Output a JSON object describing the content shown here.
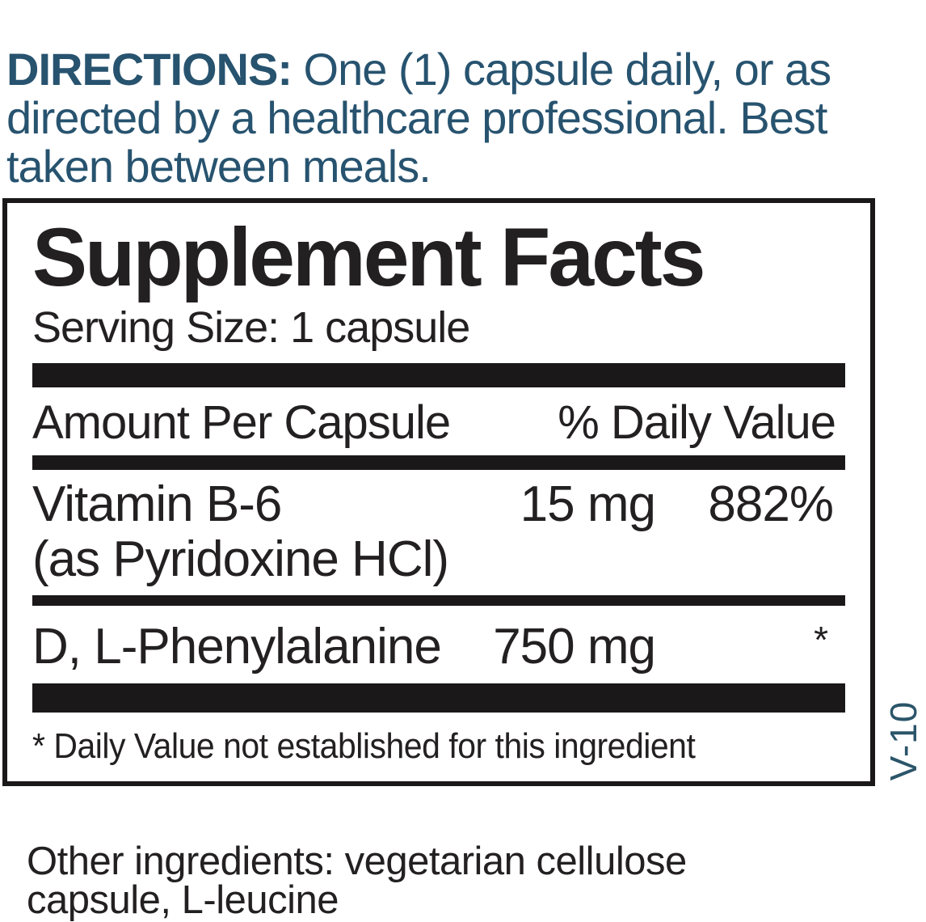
{
  "colors": {
    "accent_blue": "#27536f",
    "ink_black": "#232022",
    "bar_black": "#1b1819"
  },
  "directions": {
    "label": "DIRECTIONS:",
    "text": " One (1) capsule daily, or as directed by a healthcare professional. Best taken between meals."
  },
  "panel": {
    "title": "Supplement Facts",
    "serving_size": "Serving Size: 1 capsule",
    "columns": {
      "amount_header": "Amount Per Capsule",
      "daily_value_header": "% Daily Value"
    },
    "rows": [
      {
        "name": "Vitamin B-6",
        "detail": "(as Pyridoxine HCl)",
        "amount": "15 mg",
        "dv": "882%"
      },
      {
        "name": "D, L-Phenylalanine",
        "amount": "750 mg",
        "dv": "*"
      }
    ],
    "footnote": "* Daily Value not established for this ingredient"
  },
  "side_code": "V-10",
  "other_ingredients": "Other ingredients: vegetarian cellulose capsule, L-leucine"
}
